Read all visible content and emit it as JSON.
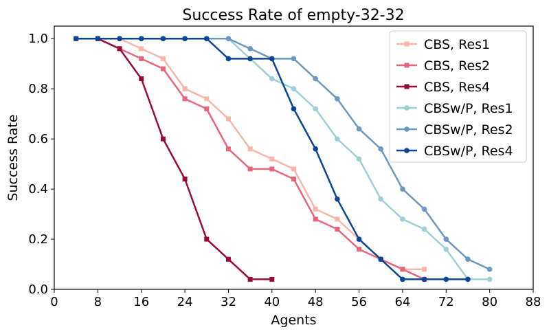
{
  "chart_data": {
    "type": "line",
    "title": "Success Rate of empty-32-32",
    "xlabel": "Agents",
    "ylabel": "Success Rate",
    "xlim": [
      0,
      88
    ],
    "ylim": [
      0,
      1.05
    ],
    "xticks": [
      0,
      8,
      16,
      24,
      32,
      40,
      48,
      56,
      64,
      72,
      80,
      88
    ],
    "yticks": [
      0.0,
      0.2,
      0.4,
      0.6,
      0.8,
      1.0
    ],
    "grid": false,
    "legend_position": "top-right",
    "series": [
      {
        "name": "CBS, Res1",
        "color": "#fbb4a6",
        "marker": "square",
        "x": [
          4,
          8,
          12,
          16,
          20,
          24,
          28,
          32,
          36,
          40,
          44,
          48,
          52,
          56,
          60,
          64,
          68
        ],
        "y": [
          1.0,
          1.0,
          1.0,
          0.96,
          0.92,
          0.8,
          0.76,
          0.68,
          0.56,
          0.52,
          0.48,
          0.32,
          0.28,
          0.2,
          0.12,
          0.08,
          0.08
        ]
      },
      {
        "name": "CBS, Res2",
        "color": "#e8667a",
        "marker": "square",
        "x": [
          4,
          8,
          12,
          16,
          20,
          24,
          28,
          32,
          36,
          40,
          44,
          48,
          52,
          56,
          60,
          64,
          68
        ],
        "y": [
          1.0,
          1.0,
          0.96,
          0.92,
          0.88,
          0.76,
          0.72,
          0.56,
          0.48,
          0.48,
          0.44,
          0.28,
          0.24,
          0.16,
          0.12,
          0.08,
          0.04
        ]
      },
      {
        "name": "CBS, Res4",
        "color": "#990a3c",
        "marker": "square",
        "x": [
          4,
          8,
          12,
          16,
          20,
          24,
          28,
          32,
          36,
          40
        ],
        "y": [
          1.0,
          1.0,
          0.96,
          0.84,
          0.6,
          0.44,
          0.2,
          0.12,
          0.04,
          0.04
        ]
      },
      {
        "name": "CBSw/P, Res1",
        "color": "#9ecfd6",
        "marker": "circle",
        "x": [
          4,
          8,
          12,
          16,
          20,
          24,
          28,
          32,
          36,
          40,
          44,
          48,
          52,
          56,
          60,
          64,
          68,
          72,
          76,
          80
        ],
        "y": [
          1.0,
          1.0,
          1.0,
          1.0,
          1.0,
          1.0,
          1.0,
          1.0,
          0.92,
          0.84,
          0.8,
          0.72,
          0.6,
          0.52,
          0.36,
          0.28,
          0.24,
          0.16,
          0.04,
          0.04
        ]
      },
      {
        "name": "CBSw/P, Res2",
        "color": "#6b97c0",
        "marker": "circle",
        "x": [
          4,
          8,
          12,
          16,
          20,
          24,
          28,
          32,
          36,
          40,
          44,
          48,
          52,
          56,
          60,
          64,
          68,
          72,
          76,
          80
        ],
        "y": [
          1.0,
          1.0,
          1.0,
          1.0,
          1.0,
          1.0,
          1.0,
          1.0,
          0.96,
          0.92,
          0.92,
          0.84,
          0.76,
          0.64,
          0.56,
          0.4,
          0.32,
          0.2,
          0.12,
          0.08
        ]
      },
      {
        "name": "CBSw/P, Res4",
        "color": "#0a4596",
        "marker": "circle",
        "x": [
          4,
          8,
          12,
          16,
          20,
          24,
          28,
          32,
          36,
          40,
          44,
          48,
          52,
          56,
          60,
          64,
          68,
          72,
          76
        ],
        "y": [
          1.0,
          1.0,
          1.0,
          1.0,
          1.0,
          1.0,
          1.0,
          0.92,
          0.92,
          0.92,
          0.72,
          0.56,
          0.36,
          0.2,
          0.12,
          0.04,
          0.04,
          0.04,
          0.04
        ]
      }
    ]
  }
}
